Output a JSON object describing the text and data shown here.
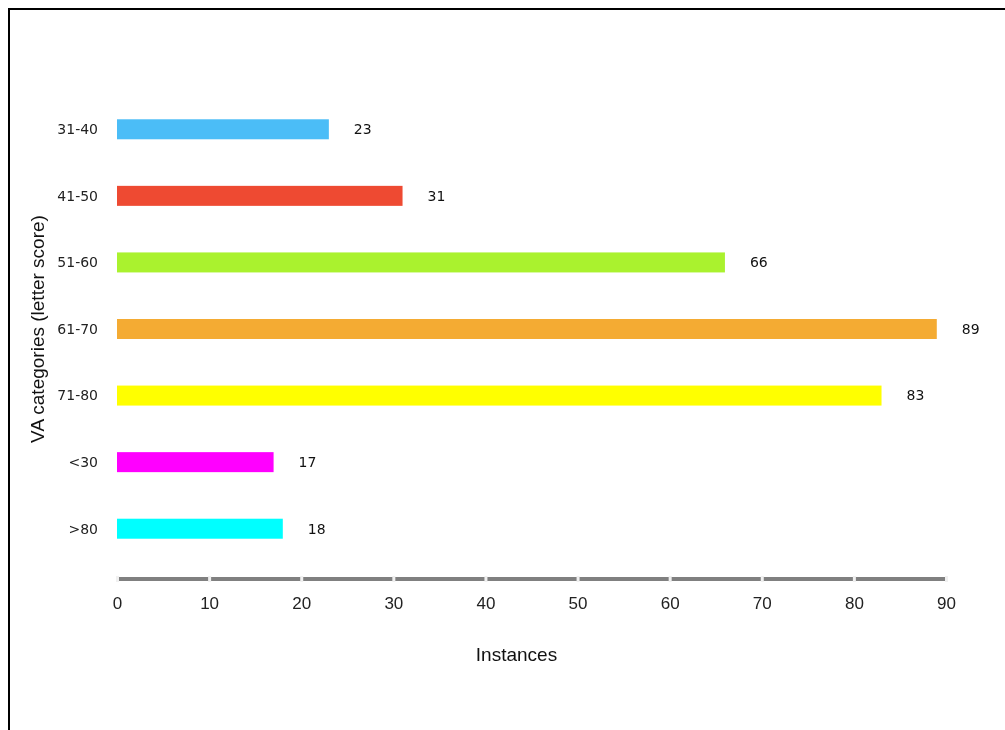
{
  "chart_data": {
    "type": "bar",
    "orientation": "horizontal",
    "xlabel": "Instances",
    "ylabel": "VA categories (letter score)",
    "categories": [
      "31-40",
      "41-50",
      "51-60",
      "61-70",
      "71-80",
      "<30",
      ">80"
    ],
    "values": [
      23,
      31,
      66,
      89,
      83,
      17,
      18
    ],
    "colors": [
      "#4bbdf7",
      "#ee4a32",
      "#aaf22e",
      "#f4ab33",
      "#ffff00",
      "#ff00ff",
      "#00ffff"
    ],
    "xlim": [
      0,
      90
    ],
    "xticks": [
      0,
      10,
      20,
      30,
      40,
      50,
      60,
      70,
      80,
      90
    ],
    "data_labels": true
  }
}
